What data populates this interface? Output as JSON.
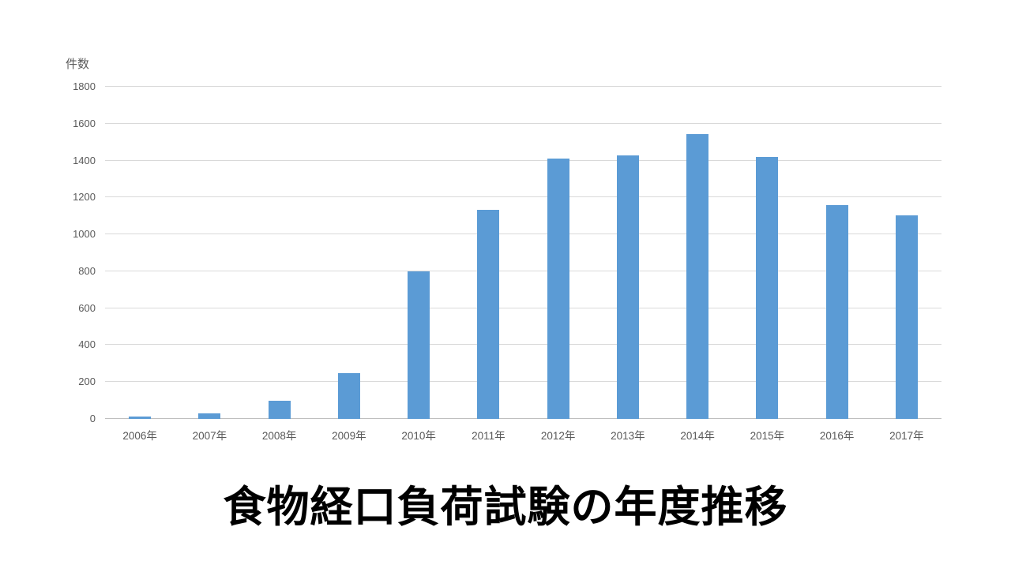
{
  "chart_data": {
    "type": "bar",
    "title": "食物経口負荷試験の年度推移",
    "ylabel": "件数",
    "xlabel": "",
    "categories": [
      "2006年",
      "2007年",
      "2008年",
      "2009年",
      "2010年",
      "2011年",
      "2012年",
      "2013年",
      "2014年",
      "2015年",
      "2016年",
      "2017年"
    ],
    "values": [
      15,
      30,
      100,
      250,
      800,
      1135,
      1410,
      1430,
      1545,
      1420,
      1160,
      1105
    ],
    "ylim": [
      0,
      1800
    ],
    "ytick_step": 200,
    "yticks": [
      0,
      200,
      400,
      600,
      800,
      1000,
      1200,
      1400,
      1600,
      1800
    ],
    "grid": true,
    "legend": "none",
    "bar_color": "#5B9BD5"
  },
  "colors": {
    "bar": "#5B9BD5",
    "gridline": "#D9D9D9",
    "axis_line": "#BFBFBF",
    "tick_label": "#595959",
    "title": "#000000",
    "background": "#FFFFFF"
  }
}
